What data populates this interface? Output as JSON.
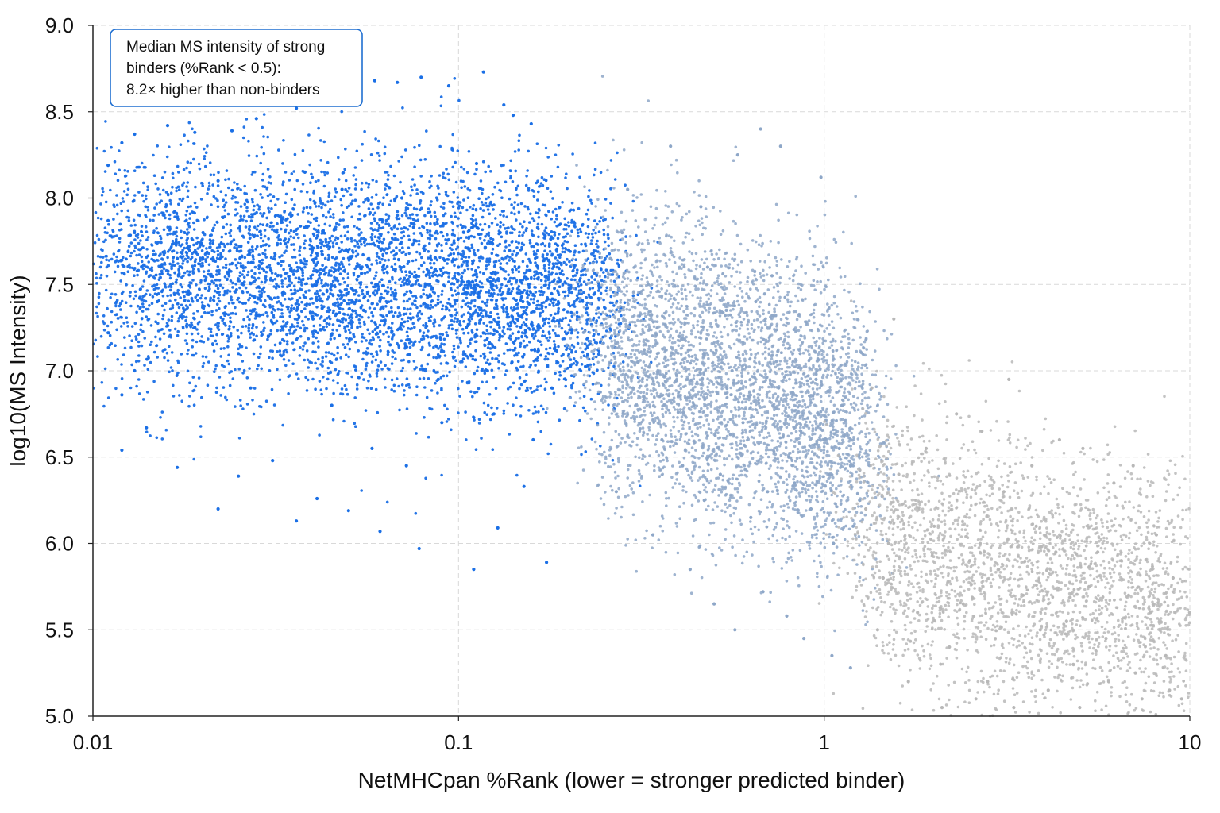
{
  "chart_data": {
    "type": "scatter",
    "title": "",
    "xlabel": "NetMHCpan %Rank (lower = stronger predicted binder)",
    "ylabel": "log10(MS Intensity)",
    "x_scale": "log",
    "xlim": [
      0.01,
      10
    ],
    "ylim": [
      5.0,
      9.0
    ],
    "x_ticks": [
      "0.01",
      "0.1",
      "1",
      "10"
    ],
    "x_tick_values": [
      0.01,
      0.1,
      1,
      10
    ],
    "y_ticks": [
      "5.0",
      "5.5",
      "6.0",
      "6.5",
      "7.0",
      "7.5",
      "8.0",
      "8.5",
      "9.0"
    ],
    "y_tick_values": [
      5.0,
      5.5,
      6.0,
      6.5,
      7.0,
      7.5,
      8.0,
      8.5,
      9.0
    ],
    "grid": true,
    "annotation": {
      "lines": [
        "Median MS intensity of strong",
        "binders (%Rank < 0.5):",
        "8.2× higher than non-binders"
      ],
      "placement": "top-left",
      "border_color": "#1f6fd1"
    },
    "colors": {
      "strong_binder": "#1a6fe6",
      "weak_binder": "#8ea7c8",
      "non_binder": "#b8b8b8"
    },
    "cluster_summary": [
      {
        "rank_range": [
          0.01,
          0.25
        ],
        "median_log10_intensity": 7.6,
        "color": "#1a6fe6"
      },
      {
        "rank_range": [
          0.25,
          1.3
        ],
        "median_log10_intensity": 6.9,
        "color": "#8ea7c8"
      },
      {
        "rank_range": [
          1.3,
          10
        ],
        "median_log10_intensity": 5.8,
        "color": "#b8b8b8"
      }
    ],
    "series": [
      {
        "points": [
          [
            0.012,
            8.32
          ],
          [
            0.011,
            8.19
          ],
          [
            0.013,
            8.37
          ],
          [
            0.016,
            8.42
          ],
          [
            0.019,
            8.38
          ],
          [
            0.024,
            8.39
          ],
          [
            0.028,
            8.46
          ],
          [
            0.036,
            8.52
          ],
          [
            0.045,
            8.58
          ],
          [
            0.052,
            8.64
          ],
          [
            0.059,
            8.68
          ],
          [
            0.068,
            8.67
          ],
          [
            0.079,
            8.7
          ],
          [
            0.094,
            8.65
          ],
          [
            0.117,
            8.73
          ],
          [
            0.133,
            8.54
          ],
          [
            0.141,
            8.48
          ],
          [
            0.158,
            8.43
          ],
          [
            0.011,
            7.87
          ],
          [
            0.012,
            7.64
          ],
          [
            0.011,
            7.22
          ],
          [
            0.013,
            7.0
          ],
          [
            0.012,
            6.86
          ],
          [
            0.014,
            6.67
          ],
          [
            0.012,
            6.54
          ],
          [
            0.017,
            6.44
          ],
          [
            0.022,
            6.2
          ],
          [
            0.025,
            6.39
          ],
          [
            0.031,
            6.48
          ],
          [
            0.036,
            6.13
          ],
          [
            0.041,
            6.26
          ],
          [
            0.05,
            6.19
          ],
          [
            0.061,
            6.07
          ],
          [
            0.078,
            5.97
          ],
          [
            0.11,
            5.85
          ],
          [
            0.128,
            6.09
          ],
          [
            0.151,
            6.33
          ],
          [
            0.174,
            5.89
          ],
          [
            0.015,
            7.4
          ],
          [
            0.02,
            7.8
          ],
          [
            0.03,
            7.6
          ],
          [
            0.04,
            7.3
          ],
          [
            0.05,
            7.7
          ],
          [
            0.06,
            7.5
          ],
          [
            0.08,
            7.2
          ],
          [
            0.1,
            7.6
          ],
          [
            0.12,
            7.0
          ],
          [
            0.15,
            7.4
          ],
          [
            0.18,
            6.9
          ],
          [
            0.2,
            7.7
          ],
          [
            0.025,
            7.1
          ],
          [
            0.035,
            7.9
          ],
          [
            0.045,
            6.8
          ],
          [
            0.07,
            8.0
          ],
          [
            0.09,
            6.7
          ],
          [
            0.13,
            7.8
          ],
          [
            0.16,
            6.6
          ],
          [
            0.022,
            8.1
          ],
          [
            0.027,
            6.9
          ],
          [
            0.033,
            7.45
          ],
          [
            0.055,
            7.35
          ],
          [
            0.065,
            7.15
          ],
          [
            0.085,
            7.55
          ],
          [
            0.105,
            7.25
          ],
          [
            0.14,
            7.05
          ],
          [
            0.017,
            7.65
          ],
          [
            0.019,
            7.25
          ],
          [
            0.021,
            7.55
          ],
          [
            0.038,
            8.15
          ],
          [
            0.048,
            8.05
          ],
          [
            0.058,
            6.55
          ],
          [
            0.072,
            6.45
          ],
          [
            0.088,
            6.95
          ],
          [
            0.112,
            8.2
          ],
          [
            0.125,
            6.75
          ]
        ]
      },
      {
        "points": [
          [
            0.25,
            7.3
          ],
          [
            0.28,
            7.8
          ],
          [
            0.3,
            6.9
          ],
          [
            0.33,
            7.5
          ],
          [
            0.36,
            6.6
          ],
          [
            0.4,
            7.2
          ],
          [
            0.44,
            6.8
          ],
          [
            0.48,
            7.6
          ],
          [
            0.52,
            6.4
          ],
          [
            0.56,
            7.0
          ],
          [
            0.6,
            6.7
          ],
          [
            0.65,
            7.4
          ],
          [
            0.7,
            6.3
          ],
          [
            0.75,
            6.9
          ],
          [
            0.8,
            6.5
          ],
          [
            0.86,
            7.1
          ],
          [
            0.92,
            6.2
          ],
          [
            1.0,
            6.6
          ],
          [
            1.06,
            6.0
          ],
          [
            1.12,
            6.8
          ],
          [
            1.2,
            6.1
          ],
          [
            0.29,
            8.05
          ],
          [
            0.38,
            8.3
          ],
          [
            0.46,
            7.95
          ],
          [
            0.58,
            8.25
          ],
          [
            0.67,
            8.4
          ],
          [
            0.76,
            8.3
          ],
          [
            0.98,
            8.12
          ],
          [
            0.27,
            6.3
          ],
          [
            0.34,
            6.05
          ],
          [
            0.43,
            5.85
          ],
          [
            0.5,
            5.65
          ],
          [
            0.57,
            5.5
          ],
          [
            0.68,
            5.72
          ],
          [
            0.79,
            5.58
          ],
          [
            0.88,
            5.45
          ],
          [
            1.05,
            5.35
          ],
          [
            1.18,
            5.28
          ],
          [
            0.31,
            7.05
          ],
          [
            0.41,
            6.45
          ],
          [
            0.54,
            7.35
          ],
          [
            0.63,
            6.15
          ],
          [
            0.72,
            7.55
          ],
          [
            0.83,
            6.35
          ],
          [
            0.95,
            6.95
          ],
          [
            1.1,
            6.55
          ],
          [
            1.25,
            6.25
          ],
          [
            0.26,
            7.65
          ],
          [
            0.35,
            7.1
          ],
          [
            0.47,
            6.25
          ]
        ]
      },
      {
        "points": [
          [
            1.3,
            6.2
          ],
          [
            1.45,
            5.8
          ],
          [
            1.6,
            6.4
          ],
          [
            1.8,
            5.6
          ],
          [
            2.0,
            6.1
          ],
          [
            2.2,
            5.4
          ],
          [
            2.5,
            5.9
          ],
          [
            2.8,
            5.2
          ],
          [
            3.1,
            6.3
          ],
          [
            3.5,
            5.7
          ],
          [
            3.9,
            5.5
          ],
          [
            4.3,
            5.95
          ],
          [
            4.8,
            5.3
          ],
          [
            5.3,
            5.75
          ],
          [
            5.9,
            5.45
          ],
          [
            6.5,
            5.9
          ],
          [
            7.1,
            5.25
          ],
          [
            7.8,
            5.6
          ],
          [
            8.6,
            5.35
          ],
          [
            9.5,
            5.1
          ],
          [
            1.35,
            6.9
          ],
          [
            1.55,
            7.3
          ],
          [
            1.9,
            6.55
          ],
          [
            2.3,
            6.75
          ],
          [
            2.7,
            6.65
          ],
          [
            3.2,
            6.95
          ],
          [
            3.7,
            6.45
          ],
          [
            4.4,
            6.6
          ],
          [
            5.1,
            6.55
          ],
          [
            6.2,
            6.35
          ],
          [
            7.0,
            6.45
          ],
          [
            8.1,
            6.05
          ],
          [
            9.0,
            5.8
          ],
          [
            1.4,
            5.5
          ],
          [
            1.7,
            5.2
          ],
          [
            2.1,
            5.05
          ],
          [
            2.6,
            5.1
          ],
          [
            3.3,
            5.05
          ],
          [
            4.1,
            5.15
          ],
          [
            5.0,
            5.05
          ],
          [
            6.0,
            5.2
          ],
          [
            7.4,
            5.1
          ],
          [
            8.8,
            5.15
          ],
          [
            1.5,
            6.0
          ],
          [
            2.4,
            5.65
          ],
          [
            3.0,
            5.85
          ],
          [
            3.8,
            6.1
          ],
          [
            4.6,
            5.55
          ],
          [
            5.6,
            5.95
          ],
          [
            6.8,
            5.7
          ]
        ]
      }
    ]
  }
}
